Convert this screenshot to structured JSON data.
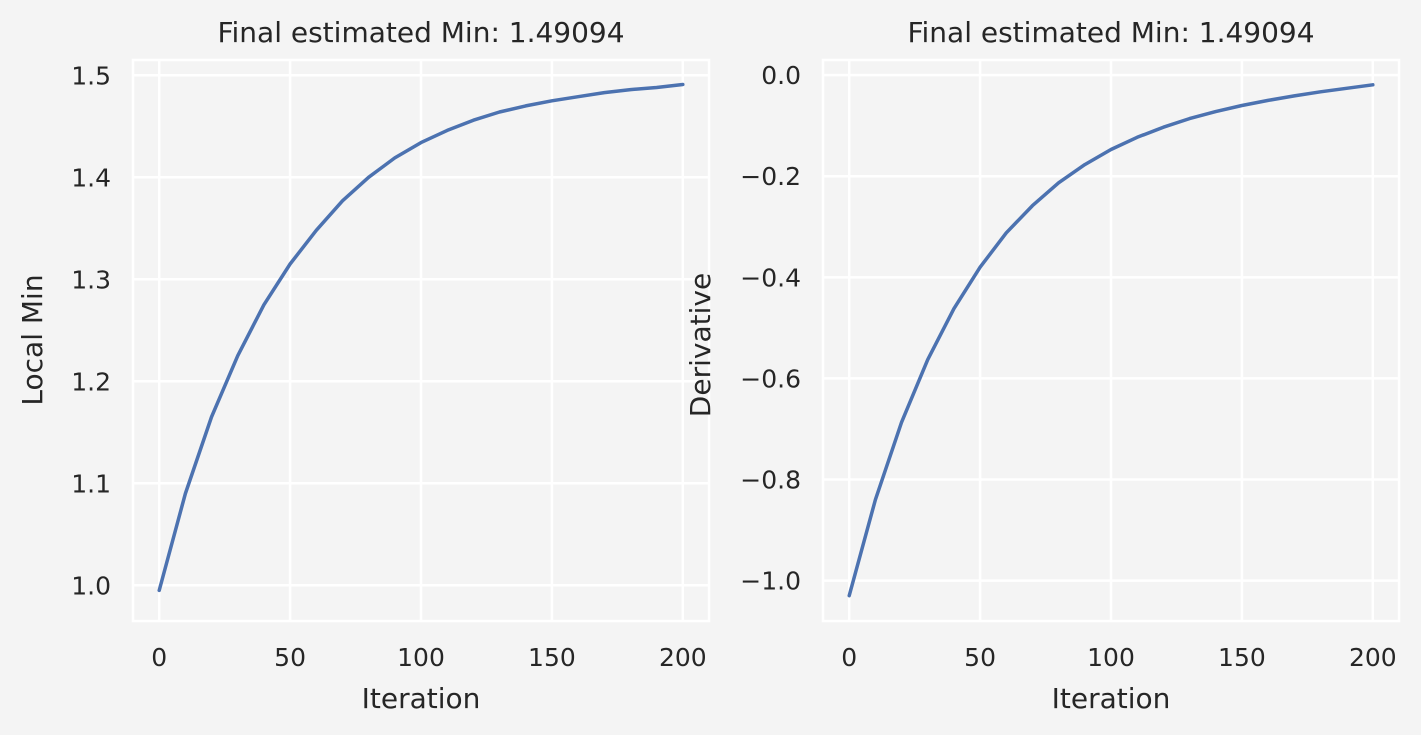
{
  "chart_data": [
    {
      "type": "line",
      "title": "Final estimated Min: 1.49094",
      "xlabel": "Iteration",
      "ylabel": "Local Min",
      "xlim": [
        -10,
        210
      ],
      "ylim": [
        0.965,
        1.515
      ],
      "xticks": [
        0,
        50,
        100,
        150,
        200
      ],
      "xtick_labels": [
        "0",
        "50",
        "100",
        "150",
        "200"
      ],
      "yticks": [
        1.0,
        1.1,
        1.2,
        1.3,
        1.4,
        1.5
      ],
      "ytick_labels": [
        "1.0",
        "1.1",
        "1.2",
        "1.3",
        "1.4",
        "1.5"
      ],
      "grid": true,
      "series": [
        {
          "color": "#4c72b0",
          "x": [
            0,
            10,
            20,
            30,
            40,
            50,
            60,
            70,
            80,
            90,
            100,
            110,
            120,
            130,
            140,
            150,
            160,
            170,
            180,
            190,
            200
          ],
          "y": [
            0.995,
            1.09,
            1.165,
            1.225,
            1.275,
            1.315,
            1.348,
            1.377,
            1.4,
            1.419,
            1.434,
            1.446,
            1.456,
            1.464,
            1.47,
            1.475,
            1.479,
            1.483,
            1.486,
            1.488,
            1.491
          ]
        }
      ]
    },
    {
      "type": "line",
      "title": "Final estimated Min: 1.49094",
      "xlabel": "Iteration",
      "ylabel": "Derivative",
      "xlim": [
        -10,
        210
      ],
      "ylim": [
        -1.08,
        0.03
      ],
      "xticks": [
        0,
        50,
        100,
        150,
        200
      ],
      "xtick_labels": [
        "0",
        "50",
        "100",
        "150",
        "200"
      ],
      "yticks": [
        0.0,
        -0.2,
        -0.4,
        -0.6,
        -0.8,
        -1.0
      ],
      "ytick_labels": [
        "0.0",
        "−0.2",
        "−0.4",
        "−0.6",
        "−0.8",
        "−1.0"
      ],
      "grid": true,
      "series": [
        {
          "color": "#4c72b0",
          "x": [
            0,
            10,
            20,
            30,
            40,
            50,
            60,
            70,
            80,
            90,
            100,
            110,
            120,
            130,
            140,
            150,
            160,
            170,
            180,
            190,
            200
          ],
          "y": [
            -1.03,
            -0.84,
            -0.687,
            -0.563,
            -0.462,
            -0.38,
            -0.312,
            -0.258,
            -0.213,
            -0.177,
            -0.147,
            -0.123,
            -0.103,
            -0.086,
            -0.072,
            -0.06,
            -0.05,
            -0.041,
            -0.033,
            -0.026,
            -0.019
          ]
        }
      ]
    }
  ]
}
